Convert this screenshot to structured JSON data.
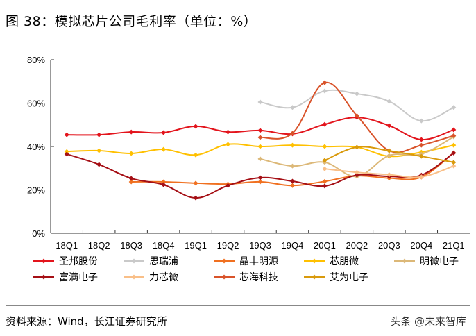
{
  "title": "图 38：模拟芯片公司毛利率（单位：%）",
  "source": "资料来源：Wind，长江证券研究所",
  "watermark": "头条 @未来智库",
  "chart_data": {
    "type": "line",
    "title": "",
    "xlabel": "",
    "ylabel": "",
    "ylim": [
      0,
      80
    ],
    "yticks": [
      "0%",
      "20%",
      "40%",
      "60%",
      "80%"
    ],
    "yticks_values": [
      0,
      20,
      40,
      60,
      80
    ],
    "categories": [
      "18Q1",
      "18Q2",
      "18Q3",
      "18Q4",
      "19Q1",
      "19Q2",
      "19Q3",
      "19Q4",
      "20Q1",
      "20Q2",
      "20Q3",
      "20Q4",
      "21Q1"
    ],
    "grid": false,
    "legend": "bottom",
    "series": [
      {
        "name": "圣邦股份",
        "color": "#e3141c",
        "values": [
          45.4,
          45.4,
          46.7,
          46.4,
          49.3,
          46.7,
          47.4,
          45.8,
          50.2,
          53.4,
          49.6,
          43.2,
          47.7
        ]
      },
      {
        "name": "思瑞浦",
        "color": "#c9c9c9",
        "values": [
          null,
          null,
          null,
          null,
          null,
          null,
          60.5,
          58.0,
          65.6,
          64.3,
          60.8,
          51.8,
          58.0
        ]
      },
      {
        "name": "晶丰明源",
        "color": "#f07020",
        "values": [
          null,
          null,
          23.7,
          23.7,
          23.1,
          22.7,
          23.7,
          22.0,
          23.9,
          26.5,
          25.4,
          25.9,
          37.1
        ]
      },
      {
        "name": "芯朋微",
        "color": "#ffc000",
        "values": [
          37.7,
          38.1,
          36.8,
          38.7,
          36.1,
          41.0,
          40.0,
          40.6,
          40.0,
          39.7,
          35.5,
          37.4,
          40.6
        ]
      },
      {
        "name": "明微电子",
        "color": "#dcb878",
        "values": [
          null,
          null,
          null,
          null,
          null,
          null,
          34.3,
          31.0,
          32.7,
          26.2,
          35.8,
          36.5,
          44.5
        ]
      },
      {
        "name": "富满电子",
        "color": "#a50f15",
        "values": [
          36.5,
          31.7,
          25.3,
          22.4,
          16.3,
          22.0,
          25.6,
          24.0,
          21.8,
          26.8,
          26.2,
          26.8,
          37.0
        ]
      },
      {
        "name": "力芯微",
        "color": "#f9bf88",
        "values": [
          null,
          null,
          null,
          null,
          null,
          null,
          null,
          null,
          29.7,
          28.1,
          27.0,
          26.0,
          31.0
        ]
      },
      {
        "name": "芯海科技",
        "color": "#d9532a",
        "values": [
          null,
          null,
          null,
          null,
          null,
          null,
          44.2,
          46.1,
          69.4,
          54.2,
          38.1,
          40.6,
          45.0
        ]
      },
      {
        "name": "艾为电子",
        "color": "#d99a0c",
        "values": [
          null,
          null,
          null,
          null,
          null,
          null,
          null,
          null,
          33.6,
          39.7,
          38.0,
          35.5,
          32.7
        ]
      }
    ]
  }
}
